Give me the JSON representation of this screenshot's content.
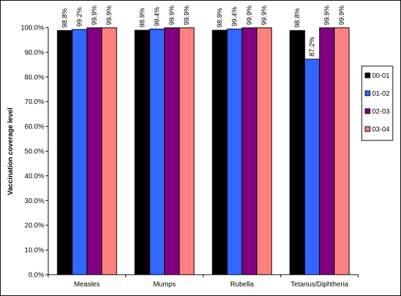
{
  "chart_data": {
    "type": "bar",
    "ylabel": "Vaccination coverage level",
    "ylim": [
      0,
      100
    ],
    "y_ticks": [
      "0.0%",
      "10.0%",
      "20.0%",
      "30.0%",
      "40.0%",
      "50.0%",
      "60.0%",
      "70.0%",
      "80.0%",
      "90.0%",
      "100.0%"
    ],
    "grid": false,
    "legend_position": "right",
    "categories": [
      "Measles",
      "Mumps",
      "Rubella",
      "Tetanus/Diphtheria"
    ],
    "series": [
      {
        "name": "00-01",
        "color": "#000000",
        "values": [
          98.8,
          98.9,
          98.9,
          98.8
        ],
        "labels": [
          "98.8%",
          "98.9%",
          "98.9%",
          "98.8%"
        ]
      },
      {
        "name": "01-02",
        "color": "#3366ff",
        "values": [
          99.2,
          99.4,
          99.4,
          87.2
        ],
        "labels": [
          "99.2%",
          "99.4%",
          "99.4%",
          "87.2%"
        ]
      },
      {
        "name": "02-03",
        "color": "#800080",
        "values": [
          99.9,
          99.9,
          99.9,
          99.9
        ],
        "labels": [
          "99.9%",
          "99.9%",
          "99.9%",
          "99.9%"
        ]
      },
      {
        "name": "03-04",
        "color": "#ff8080",
        "values": [
          99.9,
          99.9,
          99.9,
          99.9
        ],
        "labels": [
          "99.9%",
          "99.9%",
          "99.9%",
          "99.9%"
        ]
      }
    ]
  }
}
